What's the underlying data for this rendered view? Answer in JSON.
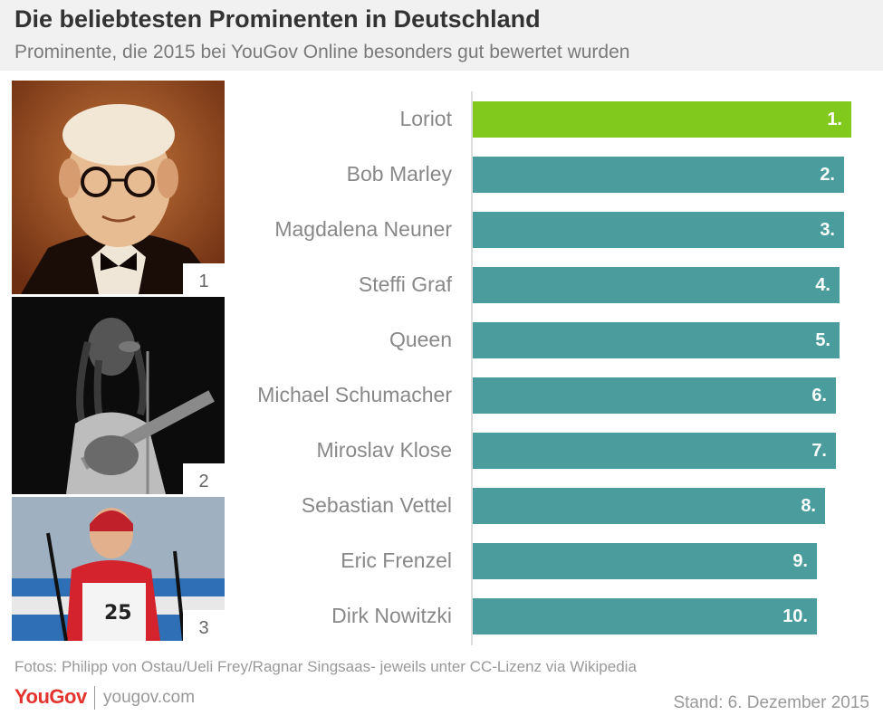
{
  "header": {
    "title": "Die beliebtesten Prominenten in Deutschland",
    "subtitle": "Prominente, die 2015 bei YouGov Online besonders gut bewertet wurden"
  },
  "photos": [
    {
      "number": "1"
    },
    {
      "number": "2"
    },
    {
      "number": "3"
    }
  ],
  "colors": {
    "highlight": "#82c91e",
    "bar": "#4a9d9c"
  },
  "chart_data": {
    "type": "bar",
    "orientation": "horizontal",
    "categories": [
      "Loriot",
      "Bob Marley",
      "Magdalena Neuner",
      "Steffi Graf",
      "Queen",
      "Michael Schumacher",
      "Miroslav Klose",
      "Sebastian Vettel",
      "Eric Frenzel",
      "Dirk Nowitzki"
    ],
    "values": [
      1.0,
      0.98,
      0.98,
      0.97,
      0.97,
      0.96,
      0.96,
      0.93,
      0.91,
      0.91
    ],
    "value_unit": "relative score (fraction of top)",
    "data_labels": [
      "1.",
      "2.",
      "3.",
      "4.",
      "5.",
      "6.",
      "7.",
      "8.",
      "9.",
      "10."
    ],
    "highlight_index": 0,
    "grid": false
  },
  "footer": {
    "credits": "Fotos: Philipp von Ostau/Ueli Frey/Ragnar Singsaas- jeweils unter CC-Lizenz via Wikipedia",
    "logo": "YouGov",
    "site": "yougov.com",
    "stand": "Stand: 6. Dezember 2015"
  }
}
